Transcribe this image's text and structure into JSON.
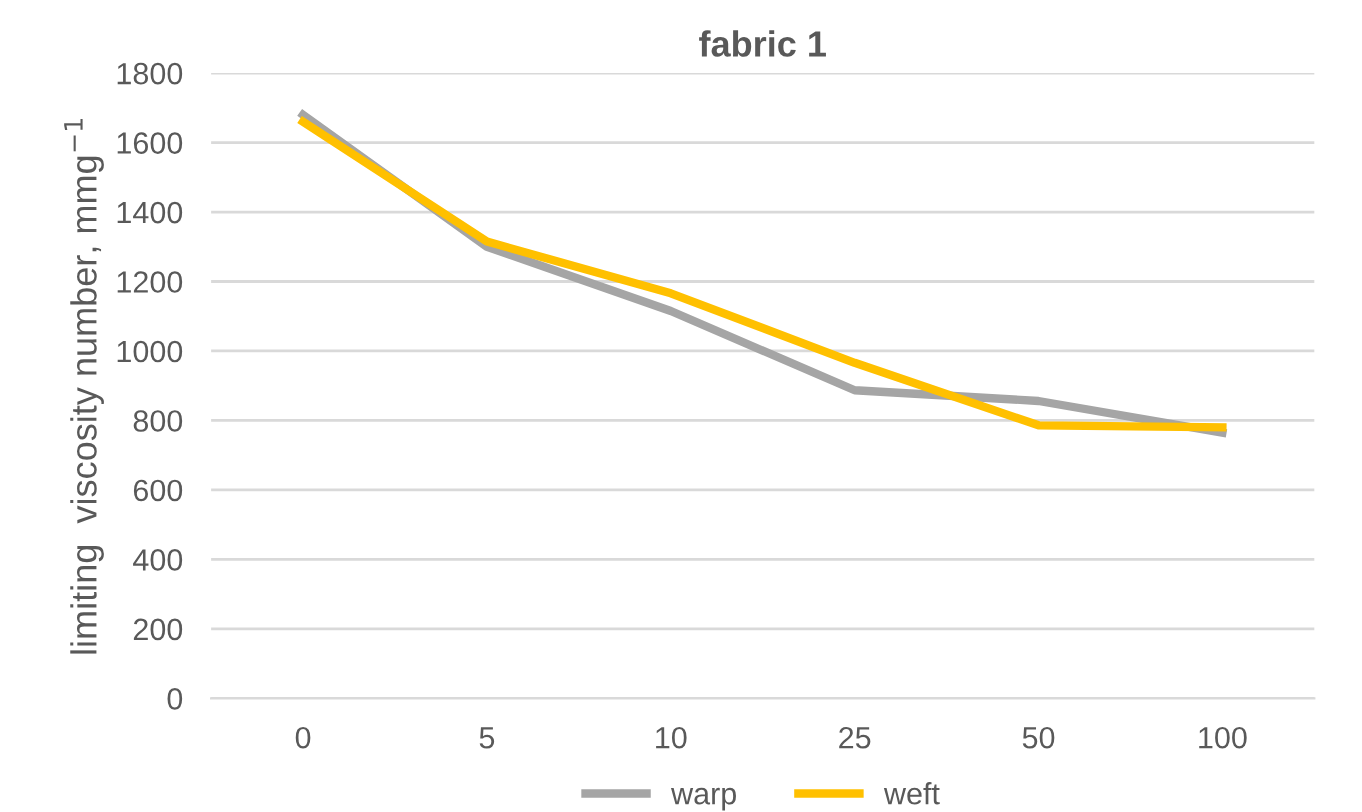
{
  "chart_data": {
    "type": "line",
    "title": "fabric 1",
    "ylabel": "limiting  viscosity number, mmg$^{−1}$",
    "categories": [
      "0",
      "5",
      "10",
      "25",
      "50",
      "100"
    ],
    "series": [
      {
        "name": "warp",
        "color": "#a5a5a5",
        "values": [
          1680,
          1300,
          1115,
          887,
          856,
          765
        ]
      },
      {
        "name": "weft",
        "color": "#ffc000",
        "values": [
          1660,
          1315,
          1166,
          966,
          786,
          780
        ]
      }
    ],
    "ylim": [
      0,
      1800
    ],
    "yticks": [
      0,
      200,
      400,
      600,
      800,
      1000,
      1200,
      1400,
      1600,
      1800
    ],
    "grid": "y",
    "legend": "bottom",
    "marker": "none",
    "line_style": "solid"
  }
}
